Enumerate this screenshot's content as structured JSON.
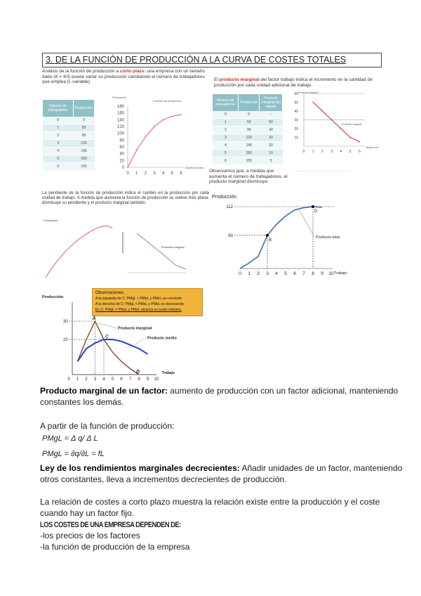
{
  "title": "3. DE LA FUNCIÓN DE PRODUCCIÓN A LA CURVA DE COSTES TOTALES",
  "intro": {
    "before": "Análisis de la función de producción a",
    "highlight": "corto plazo",
    "after": ": una empresa con un tamaño dado (K = K0) puede variar su producción cambiando el número de trabajadores que emplea (L variable)"
  },
  "marginal_intro": {
    "before": "El",
    "highlight": "producto marginal",
    "after": "del factor trabajo indica el incremento en la cantidad de producción por cada unidad adicional de trabajo."
  },
  "observe_note": "Observamos que, a medida que aumenta el número de trabajadores, el producto marginal disminuye.",
  "slope_note": "La pendiente de la función de producción indica el cambio en la producción por cada unidad de trabajo. A medida que aumenta la función de producción se vuelve más plana, disminuye su pendiente y el producto marginal también.",
  "chart_data": [
    {
      "type": "line",
      "title": "Función de producción",
      "ylabel": "Producción",
      "xlabel": "Número de trabajadores",
      "x": [
        0,
        1,
        2,
        3,
        4,
        5,
        6
      ],
      "values": [
        0,
        50,
        90,
        120,
        140,
        150,
        155
      ],
      "ylim": [
        0,
        180
      ],
      "yticks": [
        0,
        20,
        40,
        60,
        80,
        100,
        120,
        140,
        160,
        180
      ],
      "color": "#e05a5a"
    },
    {
      "type": "line",
      "ylabel": "Producto marginal",
      "xlabel": "Número de trabajadores",
      "series_label": "Producto marginal",
      "x": [
        1,
        2,
        3,
        4,
        5,
        6
      ],
      "values": [
        50,
        40,
        30,
        20,
        10,
        5
      ],
      "ylim": [
        0,
        60
      ],
      "yticks": [
        10,
        20,
        30,
        40,
        50,
        60
      ],
      "color": "#d0281c"
    },
    {
      "type": "line",
      "ylabel": "Producción",
      "xlabel": "Trabajo",
      "series_label": "Producto total",
      "x": [
        0,
        1,
        2,
        3,
        4,
        5,
        6,
        7,
        8,
        9
      ],
      "values": [
        0,
        10,
        22,
        60,
        80,
        95,
        106,
        110,
        112,
        111
      ],
      "ylim": [
        0,
        125
      ],
      "xticks": [
        0,
        1,
        2,
        3,
        4,
        5,
        6,
        7,
        8,
        9,
        10
      ],
      "annotations": [
        {
          "label": "B",
          "x": 3,
          "y": 60
        },
        {
          "label": "D",
          "x": 8,
          "y": 112
        }
      ],
      "ylabels": [
        "112",
        "60"
      ],
      "color": "#3a6fb0"
    },
    {
      "type": "line",
      "ylabel": "Producción",
      "xlabel": "Trabajo",
      "xticks": [
        0,
        1,
        2,
        3,
        4,
        5,
        6,
        7,
        8,
        9,
        10
      ],
      "ylabels": [
        "30",
        "20"
      ],
      "series": [
        {
          "name": "Producto marginal",
          "x": [
            1,
            2,
            3,
            4,
            5,
            6,
            7,
            8
          ],
          "values": [
            8,
            20,
            30,
            20,
            13,
            8,
            4,
            0
          ],
          "color": "#7a4a2a"
        },
        {
          "name": "Producto medio",
          "x": [
            1,
            2,
            3,
            4,
            5,
            6,
            7,
            8,
            9
          ],
          "values": [
            8,
            15,
            18,
            20,
            20,
            19,
            17,
            15,
            12
          ],
          "color": "#2a3fd0"
        }
      ],
      "annotations": [
        {
          "label": "A",
          "x": 3,
          "y": 30
        },
        {
          "label": "C",
          "x": 4,
          "y": 20
        },
        {
          "label": "D",
          "x": 8,
          "y": 0
        }
      ],
      "observations": [
        "Observaciones.",
        "A la izquierda de C: PMgL > PMeL y PMeL es creciente.",
        "A la derecha de C: PMgL < PMeL y PMeL es decreciente.",
        "En C: PMgL = PMeL y PMeL alcanza su punto máximo."
      ]
    }
  ],
  "text": {
    "p1_bold": "Producto marginal de un factor:",
    "p1_rest": " aumento de producción con un factor adicional, manteniendo constantes los demás.",
    "p2": "A partir de la función de producción:",
    "f1": "PMgL = Δ q/ Δ L",
    "f2": "PMgL = ∂q/∂L = fL",
    "p3_bold": "Ley de los rendimientos marginales decrecientes:",
    "p3_rest": " Añadir unidades de un factor, manteniendo otros constantes, lleva a incrementos decrecientes de producción.",
    "p4": "La relación de costes a corto plazo muestra la relación existe entre la producción y el coste cuando hay un factor fijo.",
    "p5": "LOS COSTES DE UNA EMPRESA DEPENDEN DE:",
    "li1": "-los precios de los factores",
    "li2": "-la función de producción de la empresa"
  },
  "table1": {
    "headers": [
      "Número de trabajadores",
      "Producción"
    ],
    "rows": [
      [
        "0",
        "0"
      ],
      [
        "1",
        "50"
      ],
      [
        "2",
        "90"
      ],
      [
        "3",
        "120"
      ],
      [
        "4",
        "140"
      ],
      [
        "5",
        "150"
      ],
      [
        "6",
        "155"
      ]
    ]
  },
  "table2": {
    "headers": [
      "Número de trabajadores",
      "Producción",
      "Producto marginal del trabajo"
    ],
    "rows": [
      [
        "0",
        "0",
        "-"
      ],
      [
        "1",
        "50",
        "50"
      ],
      [
        "2",
        "90",
        "40"
      ],
      [
        "3",
        "120",
        "30"
      ],
      [
        "4",
        "140",
        "20"
      ],
      [
        "5",
        "150",
        "10"
      ],
      [
        "6",
        "155",
        "5"
      ]
    ]
  }
}
